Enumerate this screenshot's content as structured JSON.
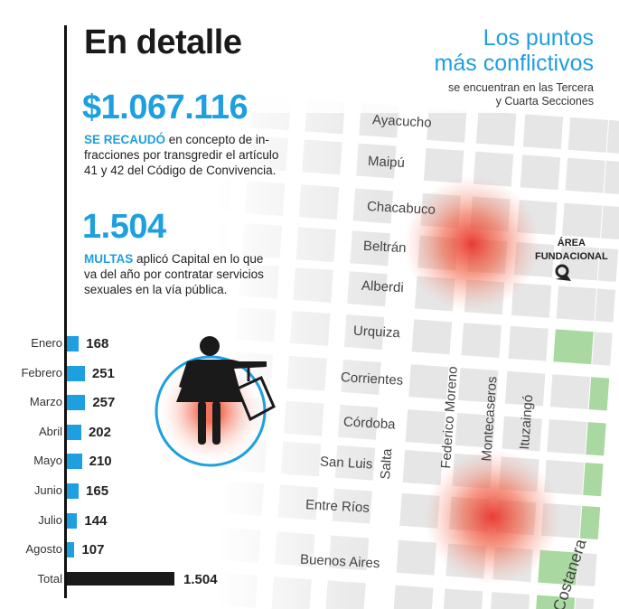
{
  "left": {
    "title": "En detalle",
    "amount": "$1.067.116",
    "amount_lead": "SE RECAUDÓ",
    "amount_text": " en concepto de in-fracciones por transgredir el artículo 41 y 42 del Código de Convivencia.",
    "fines": "1.504",
    "fines_lead": "MULTAS",
    "fines_text": " aplicó Capital en lo que va del año por contratar servicios sexuales en la vía pública."
  },
  "map": {
    "title_line1": "Los puntos",
    "title_line2": "más conflictivos",
    "subtitle_line1": "se encuentran en las Tercera",
    "subtitle_line2": "y Cuarta Secciones",
    "area_label_line1": "ÁREA",
    "area_label_line2": "FUNDACIONAL",
    "streets": [
      "Ayacucho",
      "Maipú",
      "Chacabuco",
      "Beltrán",
      "Alberdi",
      "Urquiza",
      "Corrientes",
      "Córdoba",
      "San Luis",
      "Entre Ríos",
      "Buenos Aires"
    ],
    "cross_streets": [
      "Salta",
      "Federico Moreno",
      "Montecaseros",
      "Ituzaingó",
      "Costanera"
    ],
    "icons": [
      "woman-with-tag-icon",
      "hotspot-icon",
      "area-fundacional-icon"
    ],
    "colors": {
      "accent": "#1e9fe0",
      "hotspot": "#e8322a",
      "park": "#a9d9a0",
      "block": "#e6e6e6"
    }
  },
  "chart_data": {
    "type": "bar",
    "orientation": "horizontal",
    "categories": [
      "Enero",
      "Febrero",
      "Marzo",
      "Abril",
      "Mayo",
      "Junio",
      "Julio",
      "Agosto"
    ],
    "values": [
      168,
      251,
      257,
      202,
      210,
      165,
      144,
      107
    ],
    "value_labels": [
      "168",
      "251",
      "257",
      "202",
      "210",
      "165",
      "144",
      "107"
    ],
    "total": {
      "label": "Total",
      "value": 1504,
      "value_label": "1.504"
    },
    "colors": {
      "bars": "#1e9fe0",
      "total": "#1a1a1a"
    },
    "title": "",
    "xlabel": "",
    "ylabel": ""
  }
}
